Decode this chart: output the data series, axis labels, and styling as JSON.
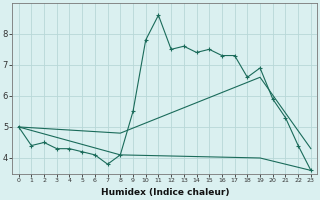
{
  "xlabel": "Humidex (Indice chaleur)",
  "curve_upper": {
    "x": [
      0,
      1,
      2,
      3,
      4,
      5,
      6,
      7,
      8,
      9,
      10,
      11,
      12,
      13,
      14,
      15,
      16,
      17,
      18,
      19,
      20,
      21,
      22,
      23
    ],
    "y": [
      5.0,
      4.4,
      4.5,
      4.3,
      4.3,
      4.2,
      4.1,
      3.8,
      4.1,
      5.5,
      7.8,
      8.6,
      7.5,
      7.6,
      7.4,
      7.5,
      7.3,
      7.3,
      6.6,
      6.9,
      5.9,
      5.3,
      4.4,
      3.6
    ]
  },
  "curve_mid": {
    "x": [
      0,
      8,
      19,
      23
    ],
    "y": [
      5.0,
      4.8,
      6.6,
      4.3
    ]
  },
  "curve_lower": {
    "x": [
      0,
      8,
      19,
      23
    ],
    "y": [
      5.0,
      4.1,
      4.0,
      3.6
    ]
  },
  "line_color": "#1a6b5a",
  "bg_color": "#daf0f0",
  "grid_color": "#b8d8d8",
  "ylim": [
    3.5,
    9.0
  ],
  "yticks": [
    4,
    5,
    6,
    7,
    8
  ],
  "xlim": [
    -0.5,
    23.5
  ],
  "figsize": [
    3.2,
    2.0
  ],
  "dpi": 100
}
